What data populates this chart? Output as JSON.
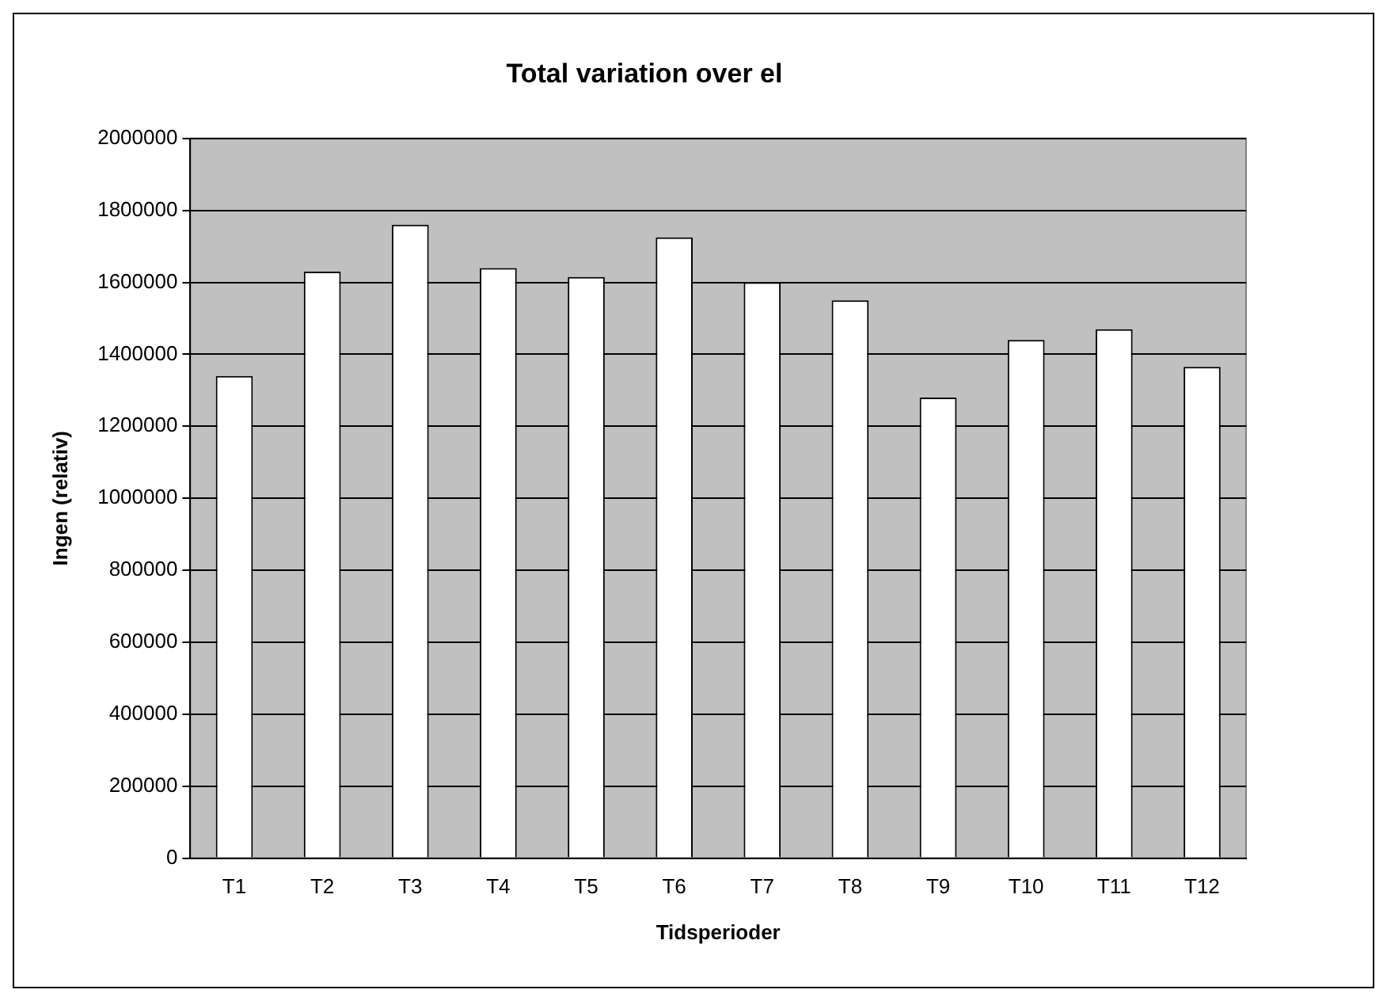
{
  "chart_data": {
    "type": "bar",
    "title": "Total variation over el",
    "xlabel": "Tidsperioder",
    "ylabel": "Ingen (relativ)",
    "categories": [
      "T1",
      "T2",
      "T3",
      "T4",
      "T5",
      "T6",
      "T7",
      "T8",
      "T9",
      "T10",
      "T11",
      "T12"
    ],
    "series": [
      {
        "color": "#ffffff",
        "values": [
          1340000,
          1630000,
          1760000,
          1640000,
          1615000,
          1725000,
          1600000,
          1550000,
          1280000,
          1440000,
          1470000,
          1365000
        ]
      }
    ],
    "ylim": [
      0,
      2000000
    ],
    "yticks": [
      0,
      200000,
      400000,
      600000,
      800000,
      1000000,
      1200000,
      1400000,
      1600000,
      1800000,
      2000000
    ],
    "grid": "y",
    "legend": false
  }
}
